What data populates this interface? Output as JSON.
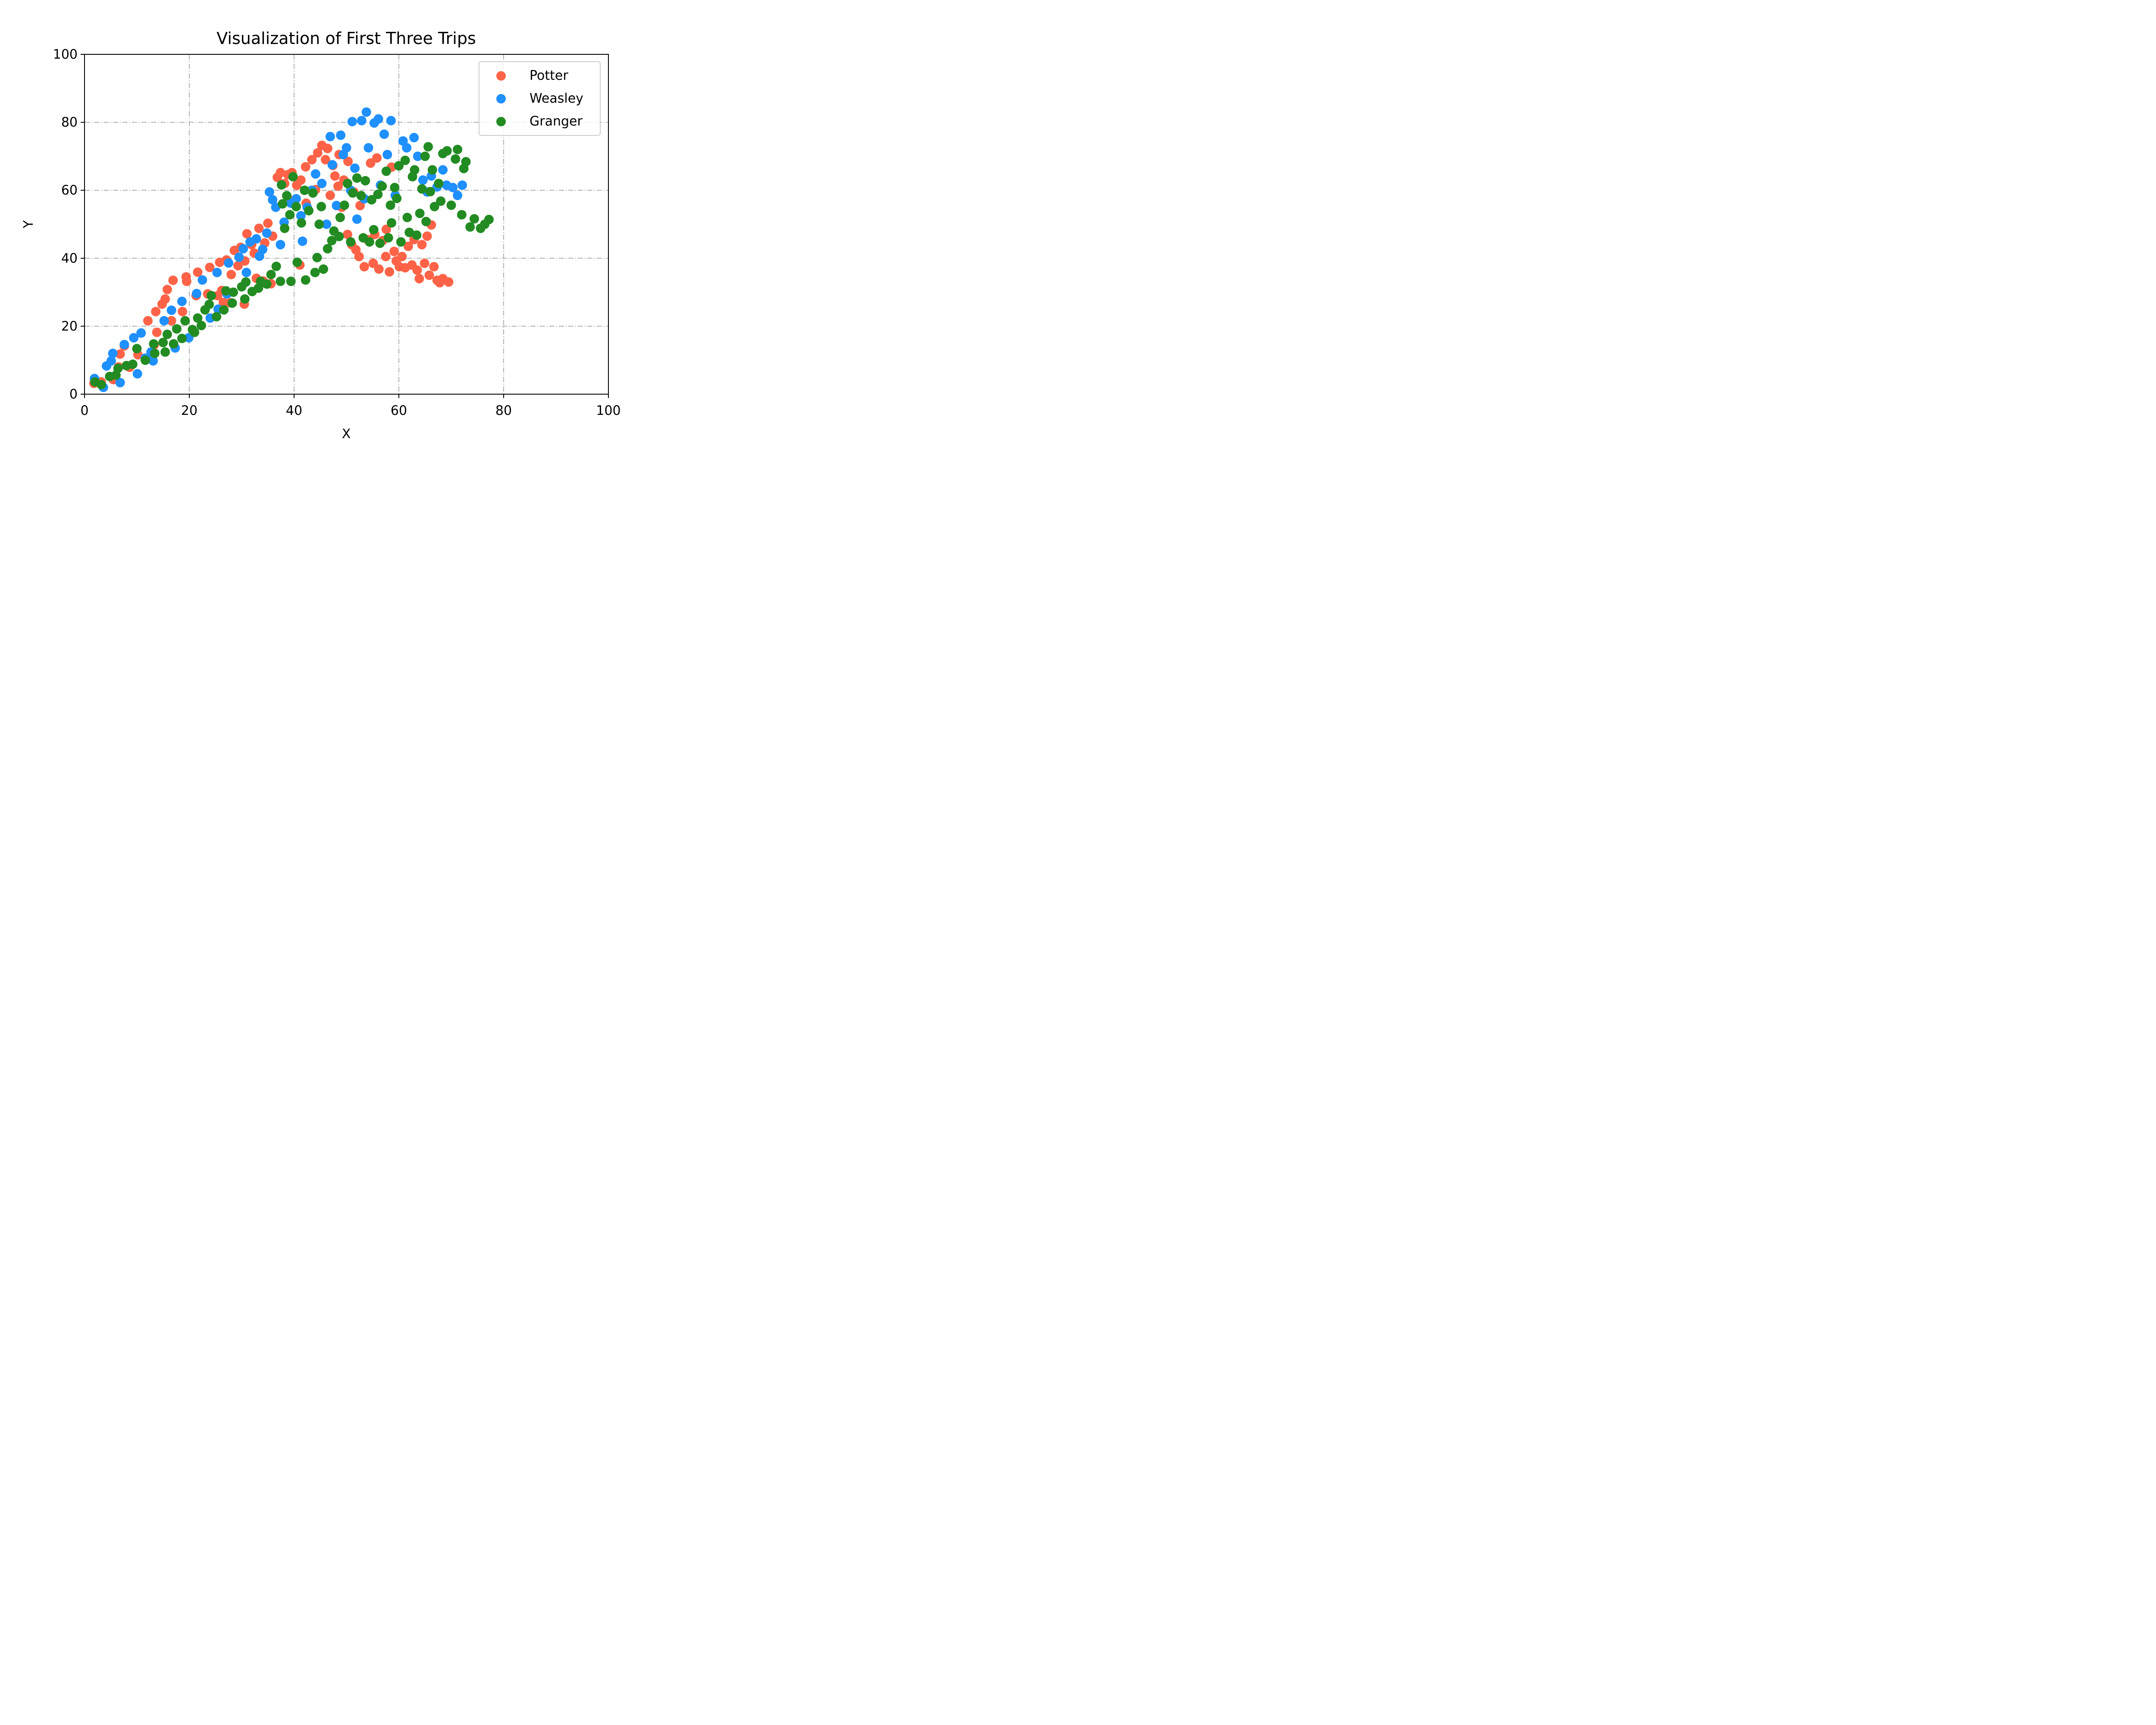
{
  "chart_data": {
    "type": "scatter",
    "title": "Visualization of First Three Trips",
    "xlabel": "X",
    "ylabel": "Y",
    "xlim": [
      0,
      100
    ],
    "ylim": [
      0,
      100
    ],
    "xticks": [
      0,
      20,
      40,
      60,
      80,
      100
    ],
    "yticks": [
      0,
      20,
      40,
      60,
      80,
      100
    ],
    "grid": true,
    "legend_position": "top-right",
    "series": [
      {
        "name": "Potter",
        "color": "#FF6347",
        "points": [
          [
            1.8,
            3.2
          ],
          [
            3.2,
            3.6
          ],
          [
            5.5,
            4.3
          ],
          [
            6.5,
            8.0
          ],
          [
            6.8,
            11.8
          ],
          [
            7.6,
            14.2
          ],
          [
            8.6,
            7.9
          ],
          [
            10.2,
            11.6
          ],
          [
            11.8,
            10.5
          ],
          [
            12.1,
            21.6
          ],
          [
            13.3,
            14.5
          ],
          [
            13.6,
            24.3
          ],
          [
            13.8,
            18.2
          ],
          [
            14.8,
            26.5
          ],
          [
            15.4,
            28.0
          ],
          [
            15.8,
            30.8
          ],
          [
            16.6,
            21.6
          ],
          [
            16.9,
            33.5
          ],
          [
            18.7,
            24.3
          ],
          [
            19.4,
            34.5
          ],
          [
            19.5,
            33.2
          ],
          [
            21.3,
            29.0
          ],
          [
            21.6,
            35.9
          ],
          [
            23.5,
            29.5
          ],
          [
            23.9,
            37.3
          ],
          [
            25.4,
            29.0
          ],
          [
            25.8,
            38.8
          ],
          [
            26.2,
            30.5
          ],
          [
            26.5,
            27.0
          ],
          [
            27.1,
            39.5
          ],
          [
            27.8,
            26.9
          ],
          [
            28.0,
            35.2
          ],
          [
            28.6,
            42.3
          ],
          [
            29.3,
            37.8
          ],
          [
            29.8,
            43.2
          ],
          [
            30.5,
            26.5
          ],
          [
            30.6,
            39.2
          ],
          [
            31.0,
            47.2
          ],
          [
            31.9,
            44.0
          ],
          [
            32.4,
            41.5
          ],
          [
            32.8,
            34.1
          ],
          [
            33.3,
            48.8
          ],
          [
            34.1,
            33.3
          ],
          [
            34.4,
            44.5
          ],
          [
            35.0,
            50.3
          ],
          [
            35.6,
            32.5
          ],
          [
            35.9,
            46.5
          ],
          [
            36.8,
            63.8
          ],
          [
            37.4,
            65.2
          ],
          [
            38.2,
            62.0
          ],
          [
            38.8,
            64.6
          ],
          [
            39.1,
            57.2
          ],
          [
            39.6,
            65.2
          ],
          [
            40.5,
            61.5
          ],
          [
            41.1,
            38.0
          ],
          [
            41.3,
            63.0
          ],
          [
            42.2,
            66.9
          ],
          [
            42.3,
            56.2
          ],
          [
            43.4,
            69.0
          ],
          [
            44.1,
            60.2
          ],
          [
            44.5,
            71.0
          ],
          [
            45.3,
            73.2
          ],
          [
            46.0,
            69.0
          ],
          [
            46.4,
            72.3
          ],
          [
            46.9,
            58.5
          ],
          [
            47.4,
            67.3
          ],
          [
            47.8,
            64.2
          ],
          [
            48.4,
            61.2
          ],
          [
            48.6,
            70.5
          ],
          [
            49.1,
            55.0
          ],
          [
            49.5,
            63.0
          ],
          [
            50.2,
            47.0
          ],
          [
            50.3,
            68.5
          ],
          [
            51.0,
            44.0
          ],
          [
            51.4,
            59.5
          ],
          [
            51.8,
            42.5
          ],
          [
            52.4,
            40.5
          ],
          [
            52.6,
            55.5
          ],
          [
            53.4,
            37.5
          ],
          [
            54.0,
            45.5
          ],
          [
            54.6,
            68.0
          ],
          [
            55.1,
            38.5
          ],
          [
            55.4,
            47.0
          ],
          [
            55.8,
            69.5
          ],
          [
            56.2,
            36.8
          ],
          [
            56.9,
            45.2
          ],
          [
            57.5,
            40.5
          ],
          [
            57.6,
            48.5
          ],
          [
            58.2,
            36.0
          ],
          [
            58.6,
            66.8
          ],
          [
            59.1,
            42.0
          ],
          [
            59.5,
            39.2
          ],
          [
            60.1,
            37.5
          ],
          [
            60.6,
            40.5
          ],
          [
            61.2,
            37.2
          ],
          [
            61.8,
            43.5
          ],
          [
            62.5,
            38.0
          ],
          [
            62.9,
            45.5
          ],
          [
            63.5,
            36.5
          ],
          [
            63.9,
            34.0
          ],
          [
            64.4,
            44.0
          ],
          [
            64.9,
            38.5
          ],
          [
            65.4,
            46.5
          ],
          [
            65.8,
            35.0
          ],
          [
            66.2,
            49.8
          ],
          [
            66.7,
            37.5
          ],
          [
            67.3,
            33.5
          ],
          [
            67.8,
            32.8
          ],
          [
            68.4,
            34.0
          ],
          [
            69.5,
            33.0
          ]
        ]
      },
      {
        "name": "Weasley",
        "color": "#1E90FF",
        "points": [
          [
            1.9,
            4.6
          ],
          [
            3.6,
            2.0
          ],
          [
            4.2,
            8.3
          ],
          [
            5.1,
            9.8
          ],
          [
            5.4,
            12.0
          ],
          [
            6.8,
            3.4
          ],
          [
            7.6,
            14.6
          ],
          [
            9.4,
            16.6
          ],
          [
            10.1,
            6.0
          ],
          [
            10.8,
            18.0
          ],
          [
            11.6,
            10.6
          ],
          [
            12.7,
            12.4
          ],
          [
            13.1,
            9.8
          ],
          [
            15.2,
            21.6
          ],
          [
            16.6,
            24.7
          ],
          [
            17.3,
            13.6
          ],
          [
            18.6,
            27.3
          ],
          [
            19.9,
            16.6
          ],
          [
            21.4,
            29.6
          ],
          [
            22.5,
            33.6
          ],
          [
            24.0,
            22.4
          ],
          [
            25.3,
            35.8
          ],
          [
            25.5,
            25.0
          ],
          [
            27.2,
            29.5
          ],
          [
            27.5,
            38.6
          ],
          [
            29.5,
            40.3
          ],
          [
            30.3,
            42.8
          ],
          [
            30.9,
            35.8
          ],
          [
            31.6,
            44.8
          ],
          [
            32.8,
            45.7
          ],
          [
            33.4,
            40.6
          ],
          [
            34.0,
            42.6
          ],
          [
            34.8,
            47.4
          ],
          [
            35.3,
            59.5
          ],
          [
            35.9,
            57.2
          ],
          [
            36.5,
            55.0
          ],
          [
            37.4,
            44.0
          ],
          [
            38.1,
            50.6
          ],
          [
            39.4,
            56.2
          ],
          [
            40.4,
            57.5
          ],
          [
            41.3,
            52.5
          ],
          [
            41.6,
            45.0
          ],
          [
            42.5,
            55.0
          ],
          [
            43.4,
            60.0
          ],
          [
            44.1,
            64.8
          ],
          [
            45.3,
            62.0
          ],
          [
            46.2,
            50.0
          ],
          [
            46.9,
            75.8
          ],
          [
            47.3,
            67.5
          ],
          [
            48.1,
            55.5
          ],
          [
            48.9,
            76.2
          ],
          [
            49.4,
            70.5
          ],
          [
            50.0,
            72.5
          ],
          [
            50.8,
            60.0
          ],
          [
            51.1,
            80.2
          ],
          [
            51.6,
            66.5
          ],
          [
            52.0,
            51.5
          ],
          [
            52.9,
            80.5
          ],
          [
            53.4,
            57.5
          ],
          [
            53.8,
            83.0
          ],
          [
            54.2,
            72.5
          ],
          [
            55.3,
            79.8
          ],
          [
            56.1,
            81.0
          ],
          [
            56.5,
            61.5
          ],
          [
            57.2,
            76.5
          ],
          [
            57.8,
            70.5
          ],
          [
            58.5,
            80.5
          ],
          [
            59.3,
            58.5
          ],
          [
            60.8,
            74.5
          ],
          [
            61.5,
            72.5
          ],
          [
            62.9,
            75.5
          ],
          [
            63.6,
            70.0
          ],
          [
            64.6,
            63.0
          ],
          [
            65.4,
            59.5
          ],
          [
            66.2,
            64.2
          ],
          [
            67.3,
            61.0
          ],
          [
            68.4,
            66.0
          ],
          [
            69.1,
            61.5
          ],
          [
            70.3,
            60.8
          ],
          [
            71.2,
            58.5
          ],
          [
            72.1,
            61.5
          ]
        ]
      },
      {
        "name": "Granger",
        "color": "#228B22",
        "points": [
          [
            2.0,
            3.6
          ],
          [
            3.2,
            2.8
          ],
          [
            4.8,
            5.2
          ],
          [
            6.0,
            5.6
          ],
          [
            6.4,
            7.6
          ],
          [
            8.0,
            8.4
          ],
          [
            9.2,
            8.8
          ],
          [
            10.0,
            13.4
          ],
          [
            11.6,
            10.0
          ],
          [
            13.2,
            14.8
          ],
          [
            13.4,
            12.0
          ],
          [
            15.0,
            15.2
          ],
          [
            15.4,
            12.4
          ],
          [
            15.8,
            17.6
          ],
          [
            17.0,
            14.8
          ],
          [
            17.6,
            19.2
          ],
          [
            18.6,
            16.4
          ],
          [
            19.2,
            21.6
          ],
          [
            20.6,
            19.0
          ],
          [
            21.0,
            18.2
          ],
          [
            21.6,
            22.4
          ],
          [
            22.3,
            20.2
          ],
          [
            23.0,
            24.8
          ],
          [
            23.8,
            26.4
          ],
          [
            24.2,
            29.0
          ],
          [
            25.2,
            22.8
          ],
          [
            26.6,
            24.8
          ],
          [
            27.0,
            30.4
          ],
          [
            28.2,
            26.8
          ],
          [
            28.4,
            30.0
          ],
          [
            30.0,
            31.6
          ],
          [
            30.6,
            28.0
          ],
          [
            30.8,
            33.0
          ],
          [
            32.0,
            30.2
          ],
          [
            33.2,
            31.2
          ],
          [
            33.6,
            33.2
          ],
          [
            34.8,
            32.4
          ],
          [
            35.6,
            35.2
          ],
          [
            36.6,
            37.6
          ],
          [
            37.4,
            33.2
          ],
          [
            37.6,
            61.6
          ],
          [
            37.8,
            56.0
          ],
          [
            38.2,
            48.8
          ],
          [
            38.6,
            58.4
          ],
          [
            39.2,
            52.8
          ],
          [
            39.4,
            33.2
          ],
          [
            39.8,
            64.0
          ],
          [
            40.4,
            55.2
          ],
          [
            40.6,
            38.8
          ],
          [
            41.4,
            50.4
          ],
          [
            42.0,
            60.0
          ],
          [
            42.2,
            33.6
          ],
          [
            42.8,
            54.0
          ],
          [
            43.6,
            59.2
          ],
          [
            44.0,
            35.8
          ],
          [
            44.4,
            40.2
          ],
          [
            44.8,
            50.0
          ],
          [
            45.2,
            55.2
          ],
          [
            45.6,
            36.8
          ],
          [
            46.4,
            42.8
          ],
          [
            47.2,
            45.2
          ],
          [
            47.6,
            48.0
          ],
          [
            48.6,
            46.4
          ],
          [
            48.8,
            52.0
          ],
          [
            49.6,
            55.6
          ],
          [
            50.2,
            62.0
          ],
          [
            50.8,
            44.8
          ],
          [
            51.2,
            59.2
          ],
          [
            52.0,
            63.6
          ],
          [
            52.8,
            58.4
          ],
          [
            53.2,
            46.0
          ],
          [
            53.6,
            62.8
          ],
          [
            54.4,
            44.8
          ],
          [
            54.8,
            57.2
          ],
          [
            55.2,
            48.4
          ],
          [
            56.0,
            58.8
          ],
          [
            56.4,
            44.4
          ],
          [
            56.8,
            61.2
          ],
          [
            57.6,
            65.6
          ],
          [
            58.0,
            46.0
          ],
          [
            58.4,
            55.6
          ],
          [
            58.6,
            50.4
          ],
          [
            59.2,
            60.8
          ],
          [
            59.6,
            57.6
          ],
          [
            60.0,
            67.2
          ],
          [
            60.4,
            44.8
          ],
          [
            61.2,
            68.8
          ],
          [
            61.6,
            52.0
          ],
          [
            62.0,
            47.6
          ],
          [
            62.6,
            64.0
          ],
          [
            63.0,
            66.0
          ],
          [
            63.4,
            46.8
          ],
          [
            64.0,
            53.2
          ],
          [
            64.4,
            60.4
          ],
          [
            65.0,
            70.0
          ],
          [
            65.2,
            50.8
          ],
          [
            65.6,
            72.8
          ],
          [
            66.0,
            59.6
          ],
          [
            66.4,
            66.0
          ],
          [
            66.8,
            55.2
          ],
          [
            67.6,
            62.0
          ],
          [
            68.0,
            56.8
          ],
          [
            68.4,
            70.8
          ],
          [
            69.2,
            71.6
          ],
          [
            70.0,
            55.6
          ],
          [
            70.8,
            69.2
          ],
          [
            71.2,
            72.0
          ],
          [
            72.0,
            52.8
          ],
          [
            72.4,
            66.4
          ],
          [
            72.8,
            68.4
          ],
          [
            73.6,
            49.2
          ],
          [
            74.4,
            51.6
          ],
          [
            75.6,
            48.8
          ],
          [
            76.4,
            50.0
          ],
          [
            77.2,
            51.4
          ]
        ]
      }
    ]
  }
}
